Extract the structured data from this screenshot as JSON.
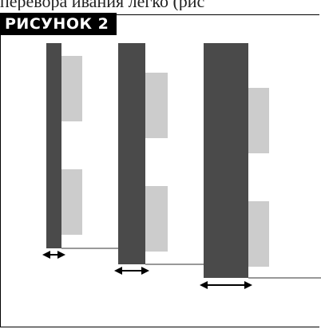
{
  "caption_fragment": "перевора ивания легко (рис",
  "figure_label": "РИСУНОК 2",
  "colors": {
    "dark_bar": "#4a4a4a",
    "light_panel": "#cccccc",
    "baseline": "#999999",
    "arrow": "#000000",
    "label_bg": "#000000",
    "label_text": "#ffffff"
  }
}
